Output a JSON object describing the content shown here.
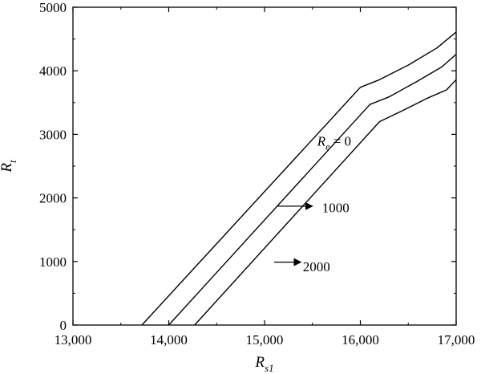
{
  "chart_data": {
    "type": "line",
    "xlabel": {
      "main": "R",
      "sub": "s1"
    },
    "ylabel": {
      "main": "R",
      "sub": "t"
    },
    "xlim": [
      13000,
      17000
    ],
    "ylim": [
      0,
      5000
    ],
    "xticks": [
      13000,
      14000,
      15000,
      16000,
      17000
    ],
    "xtick_labels": [
      "13,000",
      "14,000",
      "15,000",
      "16,000",
      "17,000"
    ],
    "yticks": [
      0,
      1000,
      2000,
      3000,
      4000,
      5000
    ],
    "ytick_labels": [
      "0",
      "1000",
      "2000",
      "3000",
      "4000",
      "5000"
    ],
    "grid": false,
    "line_color": "#000000",
    "series": [
      {
        "points": [
          [
            13720,
            0
          ],
          [
            16000,
            3740
          ],
          [
            16200,
            3860
          ],
          [
            16500,
            4090
          ],
          [
            16800,
            4360
          ],
          [
            17000,
            4610
          ]
        ]
      },
      {
        "points": [
          [
            14000,
            0
          ],
          [
            16100,
            3470
          ],
          [
            16300,
            3590
          ],
          [
            16600,
            3840
          ],
          [
            16850,
            4060
          ],
          [
            17000,
            4260
          ]
        ]
      },
      {
        "points": [
          [
            14270,
            0
          ],
          [
            16200,
            3200
          ],
          [
            16450,
            3380
          ],
          [
            16700,
            3570
          ],
          [
            16900,
            3700
          ],
          [
            17000,
            3860
          ]
        ]
      }
    ],
    "annotations": [
      {
        "main": "R",
        "sub": "e",
        "rest": " = 0",
        "x": 15550,
        "y": 2900,
        "arrow": false
      },
      {
        "text": "1000",
        "x": 15600,
        "y": 1850,
        "arrow": true,
        "arrow_from": [
          15130,
          1870
        ],
        "arrow_to": [
          15500,
          1870
        ]
      },
      {
        "text": "2000",
        "x": 15400,
        "y": 920,
        "arrow": true,
        "arrow_from": [
          15100,
          990
        ],
        "arrow_to": [
          15380,
          990
        ]
      }
    ]
  }
}
